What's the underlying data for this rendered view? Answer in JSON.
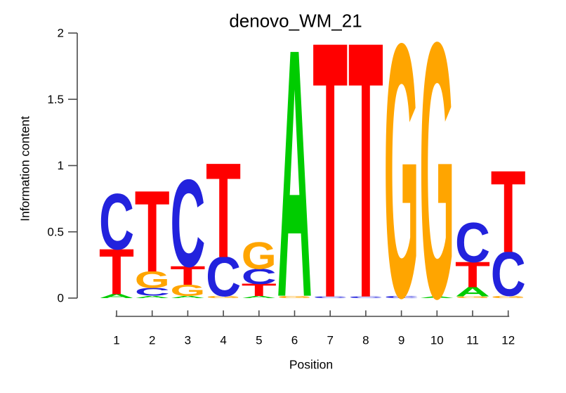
{
  "chart_data": {
    "type": "sequence_logo",
    "title": "denovo_WM_21",
    "xlabel": "Position",
    "ylabel": "Information content",
    "ylim": [
      0,
      2
    ],
    "yticks": [
      0,
      0.5,
      1,
      1.5,
      2
    ],
    "ytick_labels": [
      "0",
      "0.5",
      "1",
      "1.5",
      "2"
    ],
    "xtick_labels": [
      "1",
      "2",
      "3",
      "4",
      "5",
      "6",
      "7",
      "8",
      "9",
      "10",
      "11",
      "12"
    ],
    "legend": "none",
    "grid": "off",
    "colors": {
      "A": "#00CC00",
      "C": "#2222DD",
      "G": "#FFA500",
      "T": "#FF0000"
    },
    "stacks": [
      [
        [
          "A",
          0.03
        ],
        [
          "T",
          0.34
        ],
        [
          "C",
          0.415
        ]
      ],
      [
        [
          "A",
          0.018
        ],
        [
          "C",
          0.058
        ],
        [
          "G",
          0.125
        ],
        [
          "T",
          0.605
        ]
      ],
      [
        [
          "A",
          0.015
        ],
        [
          "G",
          0.085
        ],
        [
          "T",
          0.14
        ],
        [
          "C",
          0.65
        ]
      ],
      [
        [
          "G",
          0.015
        ],
        [
          "C",
          0.295
        ],
        [
          "T",
          0.705
        ]
      ],
      [
        [
          "A",
          0.015
        ],
        [
          "T",
          0.09
        ],
        [
          "C",
          0.115
        ],
        [
          "G",
          0.2
        ]
      ],
      [
        [
          "G",
          0.018
        ],
        [
          "A",
          1.845
        ]
      ],
      [
        [
          "C",
          0.012
        ],
        [
          "T",
          1.905
        ]
      ],
      [
        [
          "C",
          0.012
        ],
        [
          "T",
          1.905
        ]
      ],
      [
        [
          "C",
          0.018
        ],
        [
          "G",
          1.885
        ]
      ],
      [
        [
          "A",
          0.012
        ],
        [
          "G",
          1.9
        ]
      ],
      [
        [
          "G",
          0.012
        ],
        [
          "A",
          0.07
        ],
        [
          "T",
          0.19
        ],
        [
          "C",
          0.295
        ]
      ],
      [
        [
          "G",
          0.018
        ],
        [
          "C",
          0.33
        ],
        [
          "T",
          0.61
        ]
      ]
    ]
  }
}
